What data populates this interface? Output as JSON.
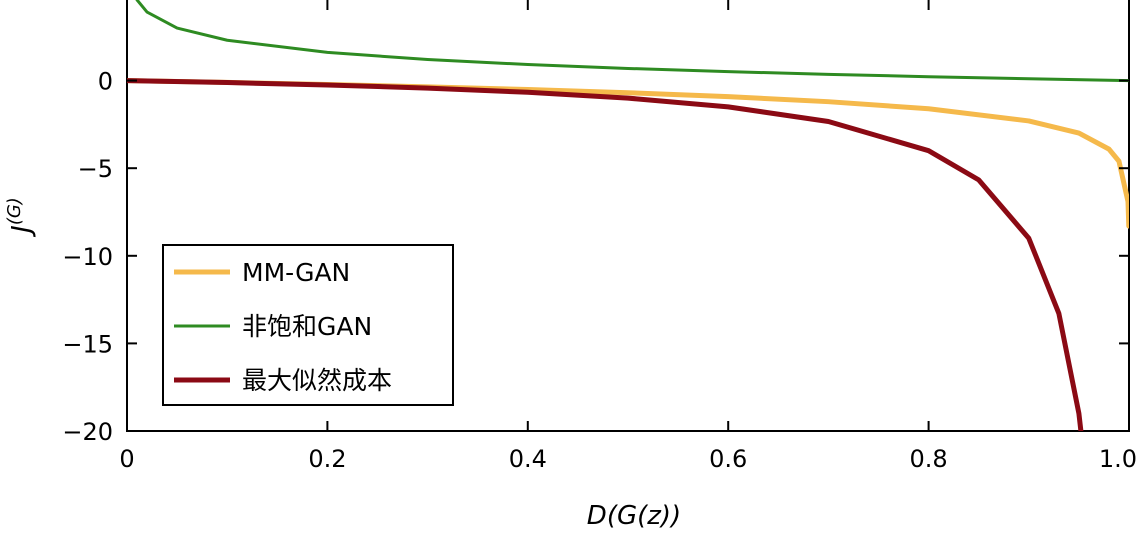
{
  "chart_data": {
    "type": "line",
    "xlabel": "D(G(z))",
    "ylabel": "J(G)",
    "xlim": [
      0,
      1.0
    ],
    "ylim": [
      -20,
      4.6
    ],
    "x_ticks": [
      "0",
      "0.2",
      "0.4",
      "0.6",
      "0.8",
      "1.0"
    ],
    "y_ticks": [
      "0",
      "−5",
      "−10",
      "−15",
      "−20"
    ],
    "grid": false,
    "legend_position": "bottom-left",
    "series": [
      {
        "name": "MM-GAN",
        "color": "#f5b94b",
        "points": [
          [
            0.001,
            0.001
          ],
          [
            0.1,
            -0.105
          ],
          [
            0.2,
            -0.223
          ],
          [
            0.3,
            -0.357
          ],
          [
            0.4,
            -0.511
          ],
          [
            0.5,
            -0.693
          ],
          [
            0.6,
            -0.916
          ],
          [
            0.7,
            -1.204
          ],
          [
            0.8,
            -1.609
          ],
          [
            0.9,
            -2.303
          ],
          [
            0.95,
            -2.996
          ],
          [
            0.98,
            -3.912
          ],
          [
            0.99,
            -4.605
          ],
          [
            0.999,
            -6.908
          ],
          [
            0.9998,
            -8.3
          ]
        ]
      },
      {
        "name": "非饱和GAN",
        "color": "#2e8b22",
        "points": [
          [
            0.01,
            4.605
          ],
          [
            0.02,
            3.912
          ],
          [
            0.05,
            2.996
          ],
          [
            0.1,
            2.303
          ],
          [
            0.2,
            1.609
          ],
          [
            0.3,
            1.204
          ],
          [
            0.4,
            0.916
          ],
          [
            0.5,
            0.693
          ],
          [
            0.6,
            0.511
          ],
          [
            0.7,
            0.357
          ],
          [
            0.8,
            0.223
          ],
          [
            0.9,
            0.105
          ],
          [
            1.0,
            0.0
          ]
        ]
      },
      {
        "name": "最大似然成本",
        "color": "#8b0a14",
        "points": [
          [
            0.001,
            -0.001
          ],
          [
            0.1,
            -0.111
          ],
          [
            0.2,
            -0.25
          ],
          [
            0.3,
            -0.429
          ],
          [
            0.4,
            -0.667
          ],
          [
            0.5,
            -1.0
          ],
          [
            0.6,
            -1.5
          ],
          [
            0.7,
            -2.333
          ],
          [
            0.8,
            -4.0
          ],
          [
            0.85,
            -5.667
          ],
          [
            0.9,
            -9.0
          ],
          [
            0.93,
            -13.29
          ],
          [
            0.95,
            -19.0
          ],
          [
            0.952,
            -20.0
          ]
        ]
      }
    ]
  }
}
